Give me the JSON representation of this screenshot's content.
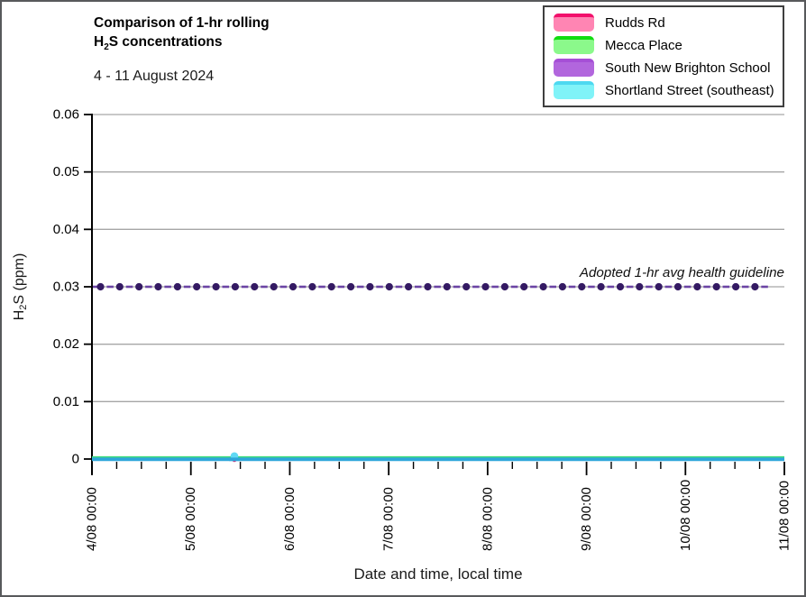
{
  "title": {
    "line1": "Comparison of 1-hr rolling",
    "line2_prefix": "H",
    "line2_sub": "2",
    "line2_suffix": "S concentrations",
    "date_range": "4 - 11 August 2024"
  },
  "legend": {
    "items": [
      {
        "label": "Rudds Rd",
        "line_color": "#f2106b",
        "fill_color": "#ff85b3"
      },
      {
        "label": "Mecca Place",
        "line_color": "#12dd12",
        "fill_color": "#8bf98b"
      },
      {
        "label": "South New Brighton School",
        "line_color": "#a64fd6",
        "fill_color": "#b266dd"
      },
      {
        "label": "Shortland Street (southeast)",
        "line_color": "#4dd9f0",
        "fill_color": "#80f3f8"
      }
    ]
  },
  "chart_data": {
    "type": "line",
    "title": "Comparison of 1-hr rolling H2S concentrations",
    "subtitle": "4 - 11 August 2024",
    "xlabel": "Date and time, local time",
    "ylabel": "H2S (ppm)",
    "ylabel_parts": {
      "prefix": "H",
      "sub": "2",
      "suffix": "S (ppm)"
    },
    "ylim": [
      0,
      0.06
    ],
    "grid": "horizontal",
    "grid_color": "#a6a6a6",
    "axis_color": "#000000",
    "y_ticks": [
      {
        "value": 0,
        "label": "0"
      },
      {
        "value": 0.01,
        "label": "0.01"
      },
      {
        "value": 0.02,
        "label": "0.02"
      },
      {
        "value": 0.03,
        "label": "0.03"
      },
      {
        "value": 0.04,
        "label": "0.04"
      },
      {
        "value": 0.05,
        "label": "0.05"
      },
      {
        "value": 0.06,
        "label": "0.06"
      }
    ],
    "x_ticks": [
      {
        "day": 0,
        "label": "4/08 00:00"
      },
      {
        "day": 1,
        "label": "5/08 00:00"
      },
      {
        "day": 2,
        "label": "6/08 00:00"
      },
      {
        "day": 3,
        "label": "7/08 00:00"
      },
      {
        "day": 4,
        "label": "8/08 00:00"
      },
      {
        "day": 5,
        "label": "9/08 00:00"
      },
      {
        "day": 6,
        "label": "10/08 00:00"
      },
      {
        "day": 7,
        "label": "11/08 00:00"
      }
    ],
    "x_minor_tick_hours": 6,
    "x_span_days": 7,
    "series": [
      {
        "name": "Rudds Rd",
        "color": "#e8186b",
        "x_days": [
          0,
          7
        ],
        "values_ppm": [
          0,
          0
        ],
        "spike": {
          "x_day": 1.44,
          "value_ppm": 0.0004
        }
      },
      {
        "name": "Mecca Place",
        "color": "#3fdc7c",
        "x_days": [
          0,
          7
        ],
        "values_ppm": [
          0,
          0
        ]
      },
      {
        "name": "South New Brighton School",
        "color": "#a64fd6",
        "x_days": [
          0,
          7
        ],
        "values_ppm": [
          0,
          0
        ]
      },
      {
        "name": "Shortland Street (southeast)",
        "color": "#2ea6da",
        "marker_color": "#5fd9f4",
        "x_days": [
          0,
          7
        ],
        "values_ppm": [
          0,
          0
        ],
        "spike": {
          "x_day": 1.44,
          "time_label": "5/08 ~10:30",
          "value_ppm": 0.001
        }
      }
    ],
    "guideline": {
      "value_ppm": 0.03,
      "label": "Adopted 1-hr avg health guideline",
      "dash_color": "#6b44a4",
      "dot_color": "#341a63"
    }
  }
}
